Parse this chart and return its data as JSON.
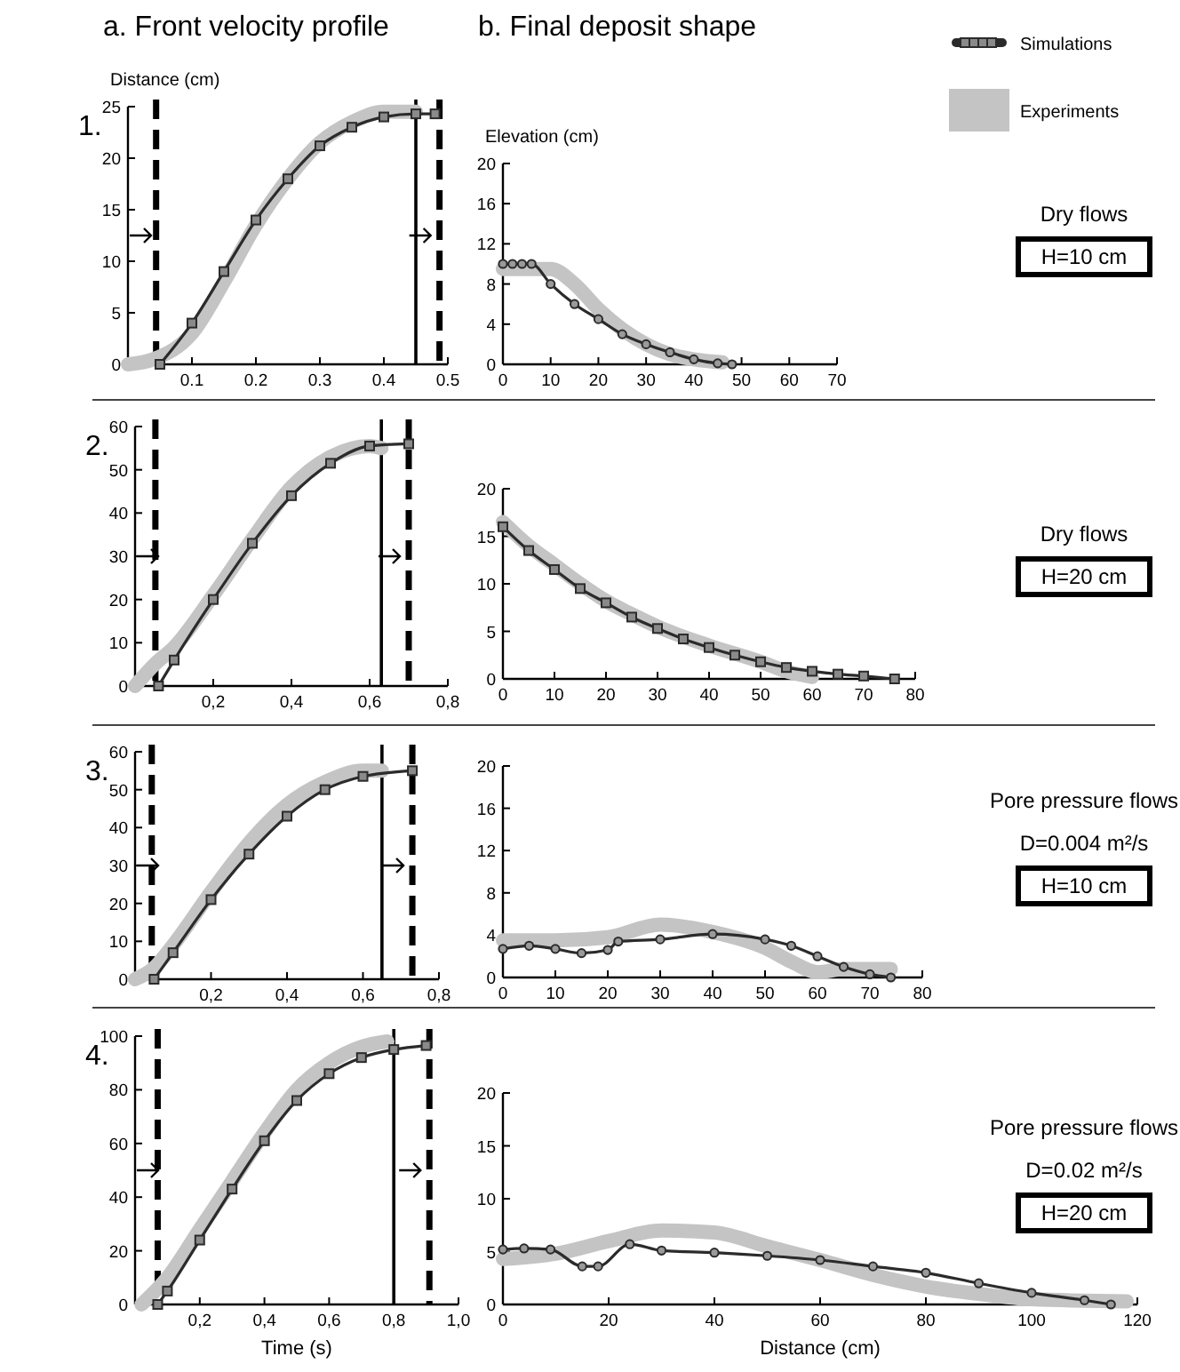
{
  "chart_data": [
    {
      "type": "line",
      "title": "a. Front velocity profile",
      "ylabel": "Distance (cm)",
      "annotations": [
        "1."
      ],
      "legend": "top right",
      "xlim": [
        0,
        0.5
      ],
      "xticks": [
        0.1,
        0.2,
        0.3,
        0.4,
        0.5
      ],
      "ylim": [
        0,
        25
      ],
      "yticks": [
        0,
        5,
        10,
        15,
        20,
        25
      ],
      "ref_lines": [
        {
          "axis": "x",
          "value": 0.044,
          "line_style": "dashed"
        },
        {
          "axis": "x",
          "value": 0.45,
          "line_style": "solid"
        },
        {
          "axis": "x",
          "value": 0.487,
          "line_style": "dashed"
        }
      ],
      "series": [
        {
          "name": "Experiments",
          "color": "#c4c4c4",
          "marker": "none",
          "x": [
            0,
            0.04,
            0.1,
            0.15,
            0.2,
            0.25,
            0.3,
            0.35,
            0.4,
            0.45
          ],
          "values": [
            0,
            0.5,
            3,
            8,
            13.5,
            18,
            21.5,
            23.5,
            24.5,
            24.5
          ]
        },
        {
          "name": "Simulations",
          "color": "#2b2b2b",
          "marker": "square",
          "x": [
            0.05,
            0.1,
            0.15,
            0.2,
            0.25,
            0.3,
            0.35,
            0.4,
            0.45,
            0.48
          ],
          "values": [
            0,
            4,
            9,
            14,
            18,
            21.2,
            23,
            24,
            24.3,
            24.3
          ]
        }
      ]
    },
    {
      "type": "line",
      "title": "b. Final deposit shape",
      "ylabel": "Elevation (cm)",
      "annotations": [
        "Dry flows",
        "H=10 cm"
      ],
      "xlim": [
        0,
        70
      ],
      "xticks": [
        0,
        10,
        20,
        30,
        40,
        50,
        60,
        70
      ],
      "ylim": [
        0,
        20
      ],
      "yticks": [
        0,
        4,
        8,
        12,
        16,
        20
      ],
      "series": [
        {
          "color": "#c4c4c4",
          "marker": "none",
          "x": [
            0,
            5,
            10,
            15,
            20,
            25,
            30,
            35,
            40,
            46
          ],
          "values": [
            9.5,
            9.5,
            9.5,
            8,
            5.5,
            3.5,
            2,
            1,
            0.5,
            0.2
          ]
        },
        {
          "color": "#2b2b2b",
          "marker": "circle",
          "x": [
            0,
            2,
            4,
            6,
            10,
            15,
            20,
            25,
            30,
            35,
            40,
            45,
            48
          ],
          "values": [
            10,
            10,
            10,
            10,
            8,
            6,
            4.5,
            3,
            2,
            1.2,
            0.5,
            0.1,
            0
          ]
        }
      ]
    },
    {
      "type": "line",
      "annotations": [
        "2."
      ],
      "xlim": [
        0,
        0.8
      ],
      "xticks": [
        {
          "value": 0.2,
          "label": "0,2"
        },
        {
          "value": 0.4,
          "label": "0,4"
        },
        {
          "value": 0.6,
          "label": "0,6"
        },
        {
          "value": 0.8,
          "label": "0,8"
        }
      ],
      "ylim": [
        0,
        60
      ],
      "yticks": [
        0,
        10,
        20,
        30,
        40,
        50,
        60
      ],
      "ref_lines": [
        {
          "axis": "x",
          "value": 0.052,
          "line_style": "dashed"
        },
        {
          "axis": "x",
          "value": 0.63,
          "line_style": "solid"
        },
        {
          "axis": "x",
          "value": 0.7,
          "line_style": "dashed"
        }
      ],
      "series": [
        {
          "color": "#c4c4c4",
          "marker": "none",
          "x": [
            0,
            0.05,
            0.1,
            0.2,
            0.3,
            0.4,
            0.5,
            0.6,
            0.63
          ],
          "values": [
            0,
            5,
            9,
            21,
            34,
            46,
            53,
            55.5,
            55
          ]
        },
        {
          "color": "#2b2b2b",
          "marker": "square",
          "x": [
            0.06,
            0.1,
            0.2,
            0.3,
            0.4,
            0.5,
            0.6,
            0.7
          ],
          "values": [
            0,
            6,
            20,
            33,
            44,
            51.5,
            55.5,
            56
          ]
        }
      ]
    },
    {
      "type": "line",
      "annotations": [
        "Dry flows",
        "H=20 cm"
      ],
      "xlim": [
        0,
        80
      ],
      "xticks": [
        0,
        10,
        20,
        30,
        40,
        50,
        60,
        70,
        80
      ],
      "ylim": [
        0,
        20
      ],
      "yticks": [
        0,
        5,
        10,
        15,
        20
      ],
      "series": [
        {
          "color": "#c4c4c4",
          "marker": "none",
          "x": [
            0,
            5,
            10,
            15,
            20,
            25,
            30,
            40,
            50,
            55,
            60
          ],
          "values": [
            16.5,
            14,
            12,
            10,
            8.2,
            6.8,
            5.5,
            3.5,
            1.8,
            0.8,
            0.2
          ]
        },
        {
          "color": "#2b2b2b",
          "marker": "square",
          "x": [
            0,
            5,
            10,
            15,
            20,
            25,
            30,
            35,
            40,
            45,
            50,
            55,
            60,
            65,
            70,
            76
          ],
          "values": [
            16,
            13.5,
            11.5,
            9.5,
            8,
            6.5,
            5.3,
            4.2,
            3.3,
            2.5,
            1.8,
            1.2,
            0.8,
            0.5,
            0.3,
            0
          ]
        }
      ]
    },
    {
      "type": "line",
      "annotations": [
        "3."
      ],
      "xlim": [
        0,
        0.8
      ],
      "xticks": [
        {
          "value": 0.2,
          "label": "0,2"
        },
        {
          "value": 0.4,
          "label": "0,4"
        },
        {
          "value": 0.6,
          "label": "0,6"
        },
        {
          "value": 0.8,
          "label": "0,8"
        }
      ],
      "ylim": [
        0,
        60
      ],
      "yticks": [
        0,
        10,
        20,
        30,
        40,
        50,
        60
      ],
      "ref_lines": [
        {
          "axis": "x",
          "value": 0.044,
          "line_style": "dashed"
        },
        {
          "axis": "x",
          "value": 0.65,
          "line_style": "solid"
        },
        {
          "axis": "x",
          "value": 0.73,
          "line_style": "dashed"
        }
      ],
      "series": [
        {
          "color": "#c4c4c4",
          "marker": "none",
          "x": [
            0,
            0.05,
            0.1,
            0.2,
            0.3,
            0.4,
            0.5,
            0.6,
            0.65
          ],
          "values": [
            0,
            3,
            9,
            23,
            36,
            46,
            52,
            55,
            55
          ]
        },
        {
          "color": "#2b2b2b",
          "marker": "square",
          "x": [
            0.05,
            0.1,
            0.2,
            0.3,
            0.4,
            0.5,
            0.6,
            0.73
          ],
          "values": [
            0,
            7,
            21,
            33,
            43,
            50,
            53.5,
            55
          ]
        }
      ]
    },
    {
      "type": "line",
      "annotations": [
        "Pore pressure flows",
        "D=0.004 m²/s",
        "H=10 cm"
      ],
      "xlim": [
        0,
        80
      ],
      "xticks": [
        0,
        10,
        20,
        30,
        40,
        50,
        60,
        70,
        80
      ],
      "ylim": [
        0,
        20
      ],
      "yticks": [
        0,
        4,
        8,
        12,
        16,
        20
      ],
      "series": [
        {
          "color": "#c4c4c4",
          "marker": "none",
          "x": [
            0,
            10,
            20,
            30,
            40,
            50,
            55,
            60,
            65,
            74
          ],
          "values": [
            3.5,
            3.5,
            3.8,
            5,
            4.3,
            2.8,
            1.5,
            0.5,
            0.8,
            0.8
          ]
        },
        {
          "color": "#2b2b2b",
          "marker": "circle",
          "x": [
            0,
            5,
            10,
            15,
            20,
            22,
            30,
            40,
            50,
            55,
            60,
            65,
            70,
            74
          ],
          "values": [
            2.7,
            3,
            2.7,
            2.3,
            2.6,
            3.4,
            3.6,
            4.1,
            3.6,
            3,
            2,
            1,
            0.3,
            0
          ]
        }
      ]
    },
    {
      "type": "line",
      "xlabel": "Time (s)",
      "annotations": [
        "4."
      ],
      "xlim": [
        0,
        1
      ],
      "xticks": [
        {
          "value": 0.2,
          "label": "0,2"
        },
        {
          "value": 0.4,
          "label": "0,4"
        },
        {
          "value": 0.6,
          "label": "0,6"
        },
        {
          "value": 0.8,
          "label": "0,8"
        },
        {
          "value": 1,
          "label": "1,0"
        }
      ],
      "ylim": [
        0,
        100
      ],
      "yticks": [
        0,
        20,
        40,
        60,
        80,
        100
      ],
      "ref_lines": [
        {
          "axis": "x",
          "value": 0.07,
          "line_style": "dashed"
        },
        {
          "axis": "x",
          "value": 0.8,
          "line_style": "solid"
        },
        {
          "axis": "x",
          "value": 0.91,
          "line_style": "dashed"
        }
      ],
      "series": [
        {
          "color": "#c4c4c4",
          "marker": "none",
          "x": [
            0.02,
            0.1,
            0.2,
            0.3,
            0.4,
            0.5,
            0.6,
            0.7,
            0.78
          ],
          "values": [
            0,
            10,
            28,
            46,
            64,
            80,
            90,
            96,
            98
          ]
        },
        {
          "color": "#2b2b2b",
          "marker": "square",
          "x": [
            0.07,
            0.1,
            0.2,
            0.3,
            0.4,
            0.5,
            0.6,
            0.7,
            0.8,
            0.9
          ],
          "values": [
            0,
            5,
            24,
            43,
            61,
            76,
            86,
            92,
            95,
            96.5
          ]
        }
      ]
    },
    {
      "type": "line",
      "xlabel": "Distance (cm)",
      "annotations": [
        "Pore pressure flows",
        "D=0.02 m²/s",
        "H=20 cm"
      ],
      "xlim": [
        0,
        120
      ],
      "xticks": [
        0,
        20,
        40,
        60,
        80,
        100,
        120
      ],
      "ylim": [
        0,
        20
      ],
      "yticks": [
        0,
        5,
        10,
        15,
        20
      ],
      "series": [
        {
          "color": "#c4c4c4",
          "marker": "none",
          "x": [
            0,
            10,
            20,
            30,
            40,
            50,
            60,
            70,
            80,
            90,
            100,
            118
          ],
          "values": [
            4.3,
            4.8,
            6,
            7,
            6.8,
            5.5,
            4.2,
            2.8,
            1.7,
            1,
            0.5,
            0.3
          ]
        },
        {
          "color": "#2b2b2b",
          "marker": "circle",
          "x": [
            0,
            4,
            9,
            15,
            18,
            24,
            30,
            40,
            50,
            60,
            70,
            80,
            90,
            100,
            110,
            115
          ],
          "values": [
            5.2,
            5.3,
            5.2,
            3.6,
            3.6,
            5.7,
            5.1,
            4.9,
            4.6,
            4.2,
            3.6,
            3,
            2,
            1.1,
            0.4,
            0
          ]
        }
      ]
    }
  ]
}
